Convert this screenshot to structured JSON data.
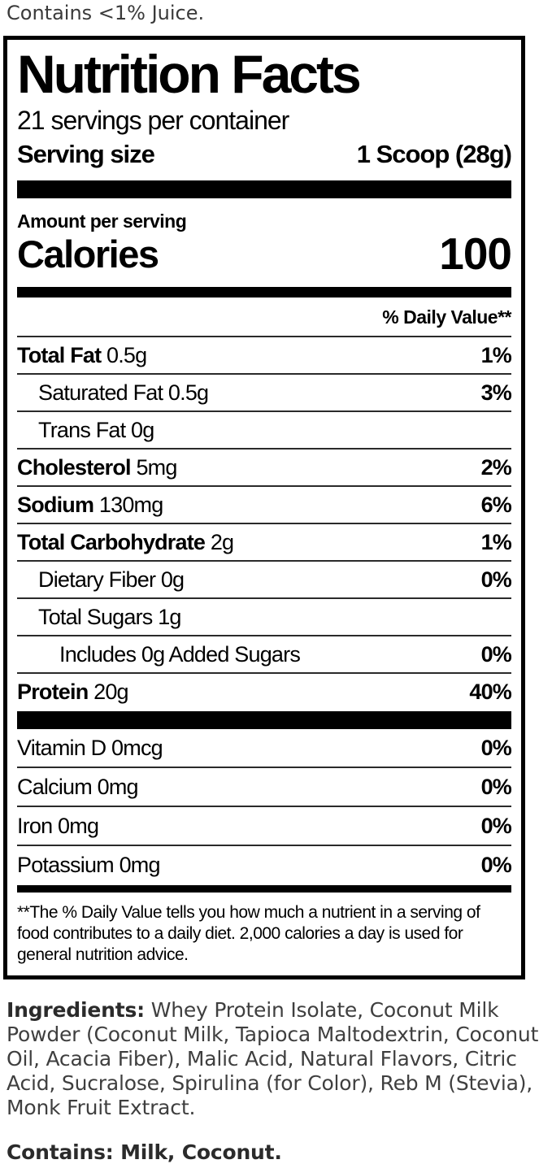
{
  "top_note": "Contains <1% Juice.",
  "panel": {
    "title": "Nutrition Facts",
    "servings_per_container": "21 servings per container",
    "serving_size_label": "Serving size",
    "serving_size_value": "1 Scoop (28g)",
    "amount_per_serving": "Amount per serving",
    "calories_label": "Calories",
    "calories_value": "100",
    "daily_value_header": "% Daily Value**",
    "rows": [
      {
        "label": "Total Fat",
        "amount": "0.5g",
        "dv": "1%",
        "bold": true,
        "indent": 0
      },
      {
        "label": "Saturated Fat",
        "amount": "0.5g",
        "dv": "3%",
        "bold": false,
        "indent": 1
      },
      {
        "label": "Trans Fat",
        "amount": "0g",
        "dv": "",
        "bold": false,
        "indent": 1
      },
      {
        "label": "Cholesterol",
        "amount": "5mg",
        "dv": "2%",
        "bold": true,
        "indent": 0
      },
      {
        "label": "Sodium",
        "amount": "130mg",
        "dv": "6%",
        "bold": true,
        "indent": 0
      },
      {
        "label": "Total Carbohydrate",
        "amount": "2g",
        "dv": "1%",
        "bold": true,
        "indent": 0
      },
      {
        "label": "Dietary Fiber",
        "amount": "0g",
        "dv": "0%",
        "bold": false,
        "indent": 1
      },
      {
        "label": "Total Sugars",
        "amount": "1g",
        "dv": "",
        "bold": false,
        "indent": 1
      },
      {
        "label": "Includes 0g Added Sugars",
        "amount": "",
        "dv": "0%",
        "bold": false,
        "indent": 2
      },
      {
        "label": "Protein",
        "amount": "20g",
        "dv": "40%",
        "bold": true,
        "indent": 0
      }
    ],
    "micronutrients": [
      {
        "label": "Vitamin D",
        "amount": "0mcg",
        "dv": "0%",
        "bold": false,
        "indent": 0
      },
      {
        "label": "Calcium",
        "amount": "0mg",
        "dv": "0%",
        "bold": false,
        "indent": 0
      },
      {
        "label": "Iron",
        "amount": "0mg",
        "dv": "0%",
        "bold": false,
        "indent": 0
      },
      {
        "label": "Potassium",
        "amount": "0mg",
        "dv": "0%",
        "bold": false,
        "indent": 0
      }
    ],
    "footnote": "**The % Daily Value tells you how much a nutrient in a serving of food contributes to a daily diet. 2,000 calories a day is used for general nutrition advice."
  },
  "ingredients": {
    "label": "Ingredients:",
    "text": "Whey Protein Isolate, Coconut Milk Powder (Coconut Milk, Tapioca Maltodextrin, Coconut Oil, Acacia Fiber), Malic Acid, Natural Flavors, Citric Acid, Sucralose, Spirulina (for Color), Reb M (Stevia), Monk Fruit Extract."
  },
  "allergens": "Contains: Milk, Coconut.",
  "colors": {
    "ink": "#000000",
    "body_text": "#3f3f3f"
  }
}
